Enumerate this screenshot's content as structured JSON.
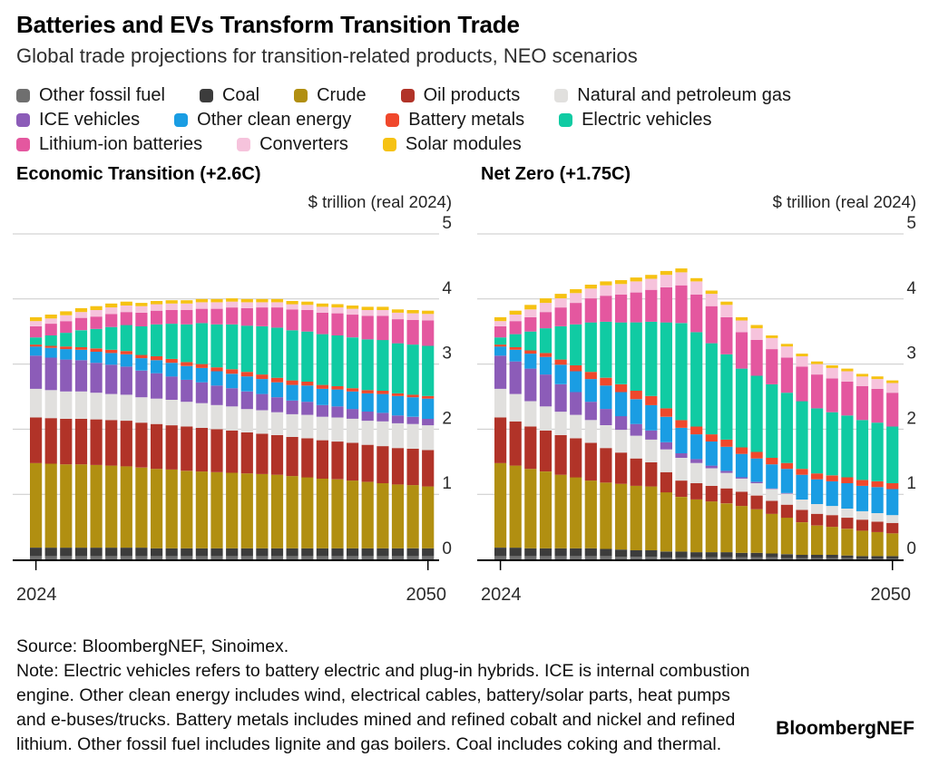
{
  "header": {
    "title": "Batteries and EVs Transform Transition Trade",
    "subtitle": "Global trade projections for transition-related products, NEO scenarios"
  },
  "footer": {
    "source": "Source: BloombergNEF, Sinoimex.",
    "note_lines": [
      "Note: Electric vehicles refers to battery electric and plug-in hybrids. ICE is internal combustion",
      "engine. Other clean energy includes wind, electrical cables, battery/solar parts, heat pumps",
      "and e-buses/trucks. Battery metals includes mined and refined cobalt and nickel and refined",
      "lithium. Other fossil fuel includes lignite and gas boilers. Coal includes coking and thermal."
    ],
    "brand": "BloombergNEF"
  },
  "chart_data": {
    "type": "bar",
    "subtype": "stacked-column",
    "unit_label": "$ trillion (real 2024)",
    "ylim": [
      0,
      5
    ],
    "y_ticks": [
      0,
      1,
      2,
      3,
      4,
      5
    ],
    "x_tick_labels": [
      "2024",
      "2050"
    ],
    "grid": true,
    "legend_position": "top",
    "years": [
      2024,
      2025,
      2026,
      2027,
      2028,
      2029,
      2030,
      2031,
      2032,
      2033,
      2034,
      2035,
      2036,
      2037,
      2038,
      2039,
      2040,
      2041,
      2042,
      2043,
      2044,
      2045,
      2046,
      2047,
      2048,
      2049,
      2050
    ],
    "series": [
      {
        "key": "other_fossil_fuel",
        "label": "Other fossil fuel",
        "color": "#6f6f6f"
      },
      {
        "key": "coal",
        "label": "Coal",
        "color": "#3c3c3c"
      },
      {
        "key": "crude",
        "label": "Crude",
        "color": "#b18f11"
      },
      {
        "key": "oil_products",
        "label": "Oil products",
        "color": "#b13328"
      },
      {
        "key": "natural_and_petroleum_gas",
        "label": "Natural and petroleum gas",
        "color": "#e1e0de"
      },
      {
        "key": "ice_vehicles",
        "label": "ICE vehicles",
        "color": "#8c5cb8"
      },
      {
        "key": "other_clean_energy",
        "label": "Other clean energy",
        "color": "#1a9de3"
      },
      {
        "key": "battery_metals",
        "label": "Battery metals",
        "color": "#f0482c"
      },
      {
        "key": "electric_vehicles",
        "label": "Electric vehicles",
        "color": "#10cba3"
      },
      {
        "key": "lithium_ion_batteries",
        "label": "Lithium-ion batteries",
        "color": "#e4579f"
      },
      {
        "key": "converters",
        "label": "Converters",
        "color": "#f6c3dc"
      },
      {
        "key": "solar_modules",
        "label": "Solar modules",
        "color": "#f6c213"
      }
    ],
    "legend_rows": [
      [
        0,
        1,
        2,
        3,
        4
      ],
      [
        5,
        6,
        7,
        8
      ],
      [
        9,
        10,
        11
      ]
    ],
    "charts": [
      {
        "title": "Economic Transition (+2.6C)",
        "values": {
          "other_fossil_fuel": [
            0.05,
            0.05,
            0.05,
            0.05,
            0.05,
            0.05,
            0.05,
            0.05,
            0.05,
            0.05,
            0.05,
            0.05,
            0.05,
            0.05,
            0.05,
            0.05,
            0.05,
            0.05,
            0.05,
            0.05,
            0.05,
            0.05,
            0.05,
            0.05,
            0.05,
            0.05,
            0.05
          ],
          "coal": [
            0.13,
            0.13,
            0.13,
            0.13,
            0.13,
            0.13,
            0.13,
            0.13,
            0.12,
            0.12,
            0.12,
            0.12,
            0.12,
            0.12,
            0.12,
            0.12,
            0.12,
            0.12,
            0.12,
            0.12,
            0.12,
            0.12,
            0.12,
            0.12,
            0.12,
            0.12,
            0.12
          ],
          "crude": [
            1.3,
            1.29,
            1.28,
            1.28,
            1.27,
            1.26,
            1.25,
            1.23,
            1.22,
            1.21,
            1.19,
            1.18,
            1.17,
            1.16,
            1.15,
            1.14,
            1.13,
            1.11,
            1.09,
            1.07,
            1.06,
            1.04,
            1.02,
            1.0,
            0.98,
            0.97,
            0.95
          ],
          "oil_products": [
            0.7,
            0.7,
            0.7,
            0.7,
            0.7,
            0.7,
            0.7,
            0.69,
            0.69,
            0.68,
            0.68,
            0.67,
            0.66,
            0.65,
            0.63,
            0.62,
            0.61,
            0.6,
            0.6,
            0.59,
            0.58,
            0.58,
            0.57,
            0.57,
            0.56,
            0.56,
            0.56
          ],
          "natural_and_petroleum_gas": [
            0.44,
            0.43,
            0.42,
            0.42,
            0.41,
            0.4,
            0.4,
            0.39,
            0.39,
            0.39,
            0.38,
            0.38,
            0.37,
            0.37,
            0.36,
            0.36,
            0.35,
            0.35,
            0.36,
            0.36,
            0.37,
            0.37,
            0.37,
            0.38,
            0.38,
            0.38,
            0.38
          ],
          "ice_vehicles": [
            0.51,
            0.5,
            0.49,
            0.48,
            0.46,
            0.45,
            0.43,
            0.41,
            0.39,
            0.36,
            0.34,
            0.32,
            0.3,
            0.28,
            0.27,
            0.25,
            0.23,
            0.21,
            0.2,
            0.18,
            0.17,
            0.15,
            0.14,
            0.13,
            0.12,
            0.11,
            0.1
          ],
          "other_clean_energy": [
            0.14,
            0.15,
            0.16,
            0.16,
            0.17,
            0.18,
            0.19,
            0.19,
            0.2,
            0.21,
            0.21,
            0.22,
            0.22,
            0.22,
            0.23,
            0.23,
            0.23,
            0.24,
            0.25,
            0.25,
            0.26,
            0.27,
            0.28,
            0.29,
            0.3,
            0.3,
            0.31
          ],
          "battery_metals": [
            0.03,
            0.03,
            0.04,
            0.04,
            0.05,
            0.05,
            0.05,
            0.05,
            0.06,
            0.06,
            0.06,
            0.06,
            0.06,
            0.07,
            0.07,
            0.07,
            0.07,
            0.07,
            0.06,
            0.06,
            0.05,
            0.05,
            0.05,
            0.05,
            0.04,
            0.04,
            0.04
          ],
          "electric_vehicles": [
            0.11,
            0.16,
            0.21,
            0.26,
            0.3,
            0.35,
            0.4,
            0.44,
            0.49,
            0.54,
            0.58,
            0.63,
            0.66,
            0.69,
            0.71,
            0.74,
            0.77,
            0.77,
            0.77,
            0.78,
            0.78,
            0.78,
            0.78,
            0.78,
            0.77,
            0.77,
            0.77
          ],
          "lithium_ion_batteries": [
            0.17,
            0.18,
            0.18,
            0.19,
            0.19,
            0.2,
            0.2,
            0.21,
            0.21,
            0.21,
            0.22,
            0.22,
            0.24,
            0.26,
            0.27,
            0.29,
            0.31,
            0.32,
            0.33,
            0.33,
            0.34,
            0.35,
            0.36,
            0.37,
            0.37,
            0.38,
            0.39
          ],
          "converters": [
            0.08,
            0.08,
            0.09,
            0.09,
            0.1,
            0.1,
            0.1,
            0.1,
            0.1,
            0.1,
            0.1,
            0.1,
            0.1,
            0.09,
            0.09,
            0.08,
            0.08,
            0.08,
            0.08,
            0.09,
            0.09,
            0.09,
            0.09,
            0.09,
            0.1,
            0.1,
            0.1
          ],
          "solar_modules": [
            0.06,
            0.06,
            0.06,
            0.06,
            0.06,
            0.06,
            0.06,
            0.05,
            0.05,
            0.05,
            0.05,
            0.05,
            0.05,
            0.05,
            0.05,
            0.05,
            0.05,
            0.05,
            0.05,
            0.05,
            0.05,
            0.05,
            0.05,
            0.05,
            0.05,
            0.05,
            0.05
          ]
        }
      },
      {
        "title": "Net Zero (+1.75C)",
        "values": {
          "other_fossil_fuel": [
            0.05,
            0.05,
            0.05,
            0.05,
            0.05,
            0.05,
            0.05,
            0.05,
            0.04,
            0.04,
            0.04,
            0.03,
            0.03,
            0.03,
            0.03,
            0.03,
            0.03,
            0.03,
            0.03,
            0.02,
            0.02,
            0.02,
            0.02,
            0.02,
            0.01,
            0.01,
            0.01
          ],
          "coal": [
            0.13,
            0.13,
            0.12,
            0.12,
            0.12,
            0.12,
            0.12,
            0.11,
            0.11,
            0.1,
            0.1,
            0.09,
            0.09,
            0.08,
            0.08,
            0.08,
            0.07,
            0.07,
            0.06,
            0.06,
            0.05,
            0.05,
            0.05,
            0.04,
            0.04,
            0.04,
            0.04
          ],
          "crude": [
            1.3,
            1.26,
            1.22,
            1.18,
            1.13,
            1.09,
            1.04,
            1.02,
            1.01,
            0.99,
            0.98,
            0.91,
            0.84,
            0.81,
            0.78,
            0.75,
            0.72,
            0.67,
            0.61,
            0.56,
            0.5,
            0.45,
            0.43,
            0.41,
            0.39,
            0.37,
            0.35
          ],
          "oil_products": [
            0.7,
            0.68,
            0.65,
            0.63,
            0.61,
            0.6,
            0.58,
            0.53,
            0.48,
            0.42,
            0.37,
            0.31,
            0.25,
            0.25,
            0.24,
            0.23,
            0.22,
            0.21,
            0.2,
            0.2,
            0.19,
            0.18,
            0.18,
            0.17,
            0.17,
            0.16,
            0.16
          ],
          "natural_and_petroleum_gas": [
            0.44,
            0.42,
            0.39,
            0.37,
            0.36,
            0.36,
            0.35,
            0.35,
            0.35,
            0.35,
            0.35,
            0.35,
            0.35,
            0.31,
            0.27,
            0.24,
            0.2,
            0.19,
            0.18,
            0.17,
            0.16,
            0.15,
            0.14,
            0.14,
            0.13,
            0.13,
            0.12
          ],
          "ice_vehicles": [
            0.51,
            0.5,
            0.5,
            0.49,
            0.42,
            0.35,
            0.28,
            0.25,
            0.21,
            0.18,
            0.14,
            0.11,
            0.07,
            0.06,
            0.04,
            0.03,
            0.02,
            0.02,
            0.01,
            0.01,
            0.0,
            0.0,
            0.0,
            0.0,
            0.0,
            0.0,
            0.0
          ],
          "other_clean_energy": [
            0.14,
            0.18,
            0.23,
            0.27,
            0.3,
            0.32,
            0.35,
            0.36,
            0.37,
            0.38,
            0.39,
            0.39,
            0.39,
            0.38,
            0.37,
            0.37,
            0.36,
            0.36,
            0.37,
            0.37,
            0.38,
            0.38,
            0.38,
            0.39,
            0.39,
            0.4,
            0.4
          ],
          "battery_metals": [
            0.03,
            0.04,
            0.05,
            0.06,
            0.08,
            0.09,
            0.11,
            0.12,
            0.12,
            0.13,
            0.14,
            0.13,
            0.12,
            0.12,
            0.11,
            0.11,
            0.1,
            0.1,
            0.1,
            0.09,
            0.09,
            0.09,
            0.09,
            0.09,
            0.09,
            0.09,
            0.09
          ],
          "electric_vehicles": [
            0.11,
            0.2,
            0.29,
            0.38,
            0.51,
            0.63,
            0.76,
            0.86,
            0.95,
            1.05,
            1.14,
            1.32,
            1.49,
            1.45,
            1.4,
            1.31,
            1.21,
            1.17,
            1.13,
            1.08,
            1.04,
            1.0,
            0.97,
            0.95,
            0.92,
            0.9,
            0.87
          ],
          "lithium_ion_batteries": [
            0.17,
            0.2,
            0.22,
            0.25,
            0.29,
            0.33,
            0.37,
            0.4,
            0.43,
            0.46,
            0.49,
            0.54,
            0.58,
            0.58,
            0.57,
            0.57,
            0.56,
            0.55,
            0.54,
            0.54,
            0.53,
            0.52,
            0.52,
            0.52,
            0.52,
            0.52,
            0.52
          ],
          "converters": [
            0.08,
            0.1,
            0.12,
            0.14,
            0.14,
            0.15,
            0.15,
            0.16,
            0.16,
            0.17,
            0.17,
            0.19,
            0.2,
            0.2,
            0.19,
            0.19,
            0.18,
            0.18,
            0.17,
            0.17,
            0.16,
            0.16,
            0.16,
            0.16,
            0.15,
            0.15,
            0.15
          ],
          "solar_modules": [
            0.06,
            0.06,
            0.07,
            0.07,
            0.07,
            0.06,
            0.06,
            0.06,
            0.06,
            0.06,
            0.06,
            0.06,
            0.06,
            0.05,
            0.05,
            0.05,
            0.05,
            0.05,
            0.04,
            0.04,
            0.04,
            0.04,
            0.04,
            0.04,
            0.04,
            0.04,
            0.04
          ]
        }
      }
    ],
    "style": {
      "grid_color": "#c9c9c9",
      "axis_color": "#000000",
      "tick_text_color": "#2b2b2b",
      "background": "#ffffff"
    }
  }
}
